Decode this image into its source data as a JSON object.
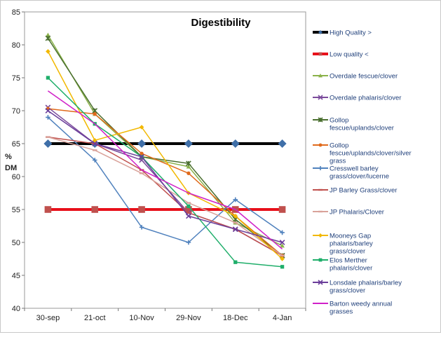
{
  "chart_data": {
    "type": "line",
    "title": "Digestibility",
    "ylabel_line1": "%",
    "ylabel_line2": "DM",
    "ylim": [
      40,
      85
    ],
    "yticks": [
      40,
      45,
      50,
      55,
      60,
      65,
      70,
      75,
      80,
      85
    ],
    "grid": false,
    "legend_position": "right",
    "categories": [
      "30-sep",
      "21-oct",
      "10-Nov",
      "29-Nov",
      "18-Dec",
      "4-Jan"
    ],
    "series": [
      {
        "name": "High Quality >",
        "color": "#000000",
        "marker": "diamond",
        "width": 4,
        "values": [
          65,
          65,
          65,
          65,
          65,
          65
        ]
      },
      {
        "name": "Low quality <",
        "color": "#e8101a",
        "marker": "square",
        "width": 4,
        "values": [
          55,
          55,
          55,
          55,
          55,
          55
        ]
      },
      {
        "name": "Overdale fescue/clover",
        "color": "#8bb24a",
        "marker": "triangle",
        "width": 1.5,
        "values": [
          81.5,
          69.5,
          63,
          61.5,
          53,
          49.5
        ]
      },
      {
        "name": "Overdale phalaris/clover",
        "color": "#7b4b9c",
        "marker": "x",
        "width": 1.5,
        "values": [
          70.5,
          65,
          62.5,
          54.5,
          52,
          48
        ]
      },
      {
        "name": "Gollop fescue/uplands/clover",
        "color": "#4a6f2f",
        "marker": "star",
        "width": 1.5,
        "values": [
          81,
          70,
          63,
          62,
          53.5,
          48
        ]
      },
      {
        "name": "Gollop fescue/uplands/clover/silver grass",
        "color": "#e06a1c",
        "marker": "circle",
        "width": 1.5,
        "values": [
          70.3,
          69.5,
          63.5,
          60.5,
          54,
          48
        ]
      },
      {
        "name": "Cresswell barley grass/clover/lucerne",
        "color": "#4f81bd",
        "marker": "plus",
        "width": 1.5,
        "values": [
          69,
          62.5,
          52.3,
          50,
          56.5,
          51.5
        ]
      },
      {
        "name": "JP Barley Grass/clover",
        "color": "#c0504d",
        "marker": "dash",
        "width": 1.5,
        "values": [
          66,
          65,
          61,
          54.5,
          52,
          48
        ]
      },
      {
        "name": "JP Phalaris/Clover",
        "color": "#d9a29a",
        "marker": "dash",
        "width": 1.5,
        "values": [
          66,
          64,
          60.5,
          56,
          53,
          48
        ]
      },
      {
        "name": "Mooneys Gap phalaris/barley grass/clover",
        "color": "#f2b800",
        "marker": "diamond",
        "width": 1.5,
        "values": [
          79,
          65.5,
          67.5,
          57.5,
          54,
          47.5
        ]
      },
      {
        "name": "Elos Merther phalaris/clover",
        "color": "#1fae6a",
        "marker": "square",
        "width": 1.5,
        "values": [
          75,
          68,
          63,
          55.5,
          47,
          46.3
        ]
      },
      {
        "name": "Lonsdale phalaris/barley grass/clover",
        "color": "#6a3d9a",
        "marker": "x",
        "width": 1.5,
        "values": [
          70,
          65,
          63,
          54,
          52,
          50
        ]
      },
      {
        "name": "Barton weedy annual grasses",
        "color": "#d020c8",
        "marker": "none",
        "width": 1.5,
        "values": [
          73,
          68,
          61,
          57.5,
          55,
          49
        ]
      }
    ]
  }
}
